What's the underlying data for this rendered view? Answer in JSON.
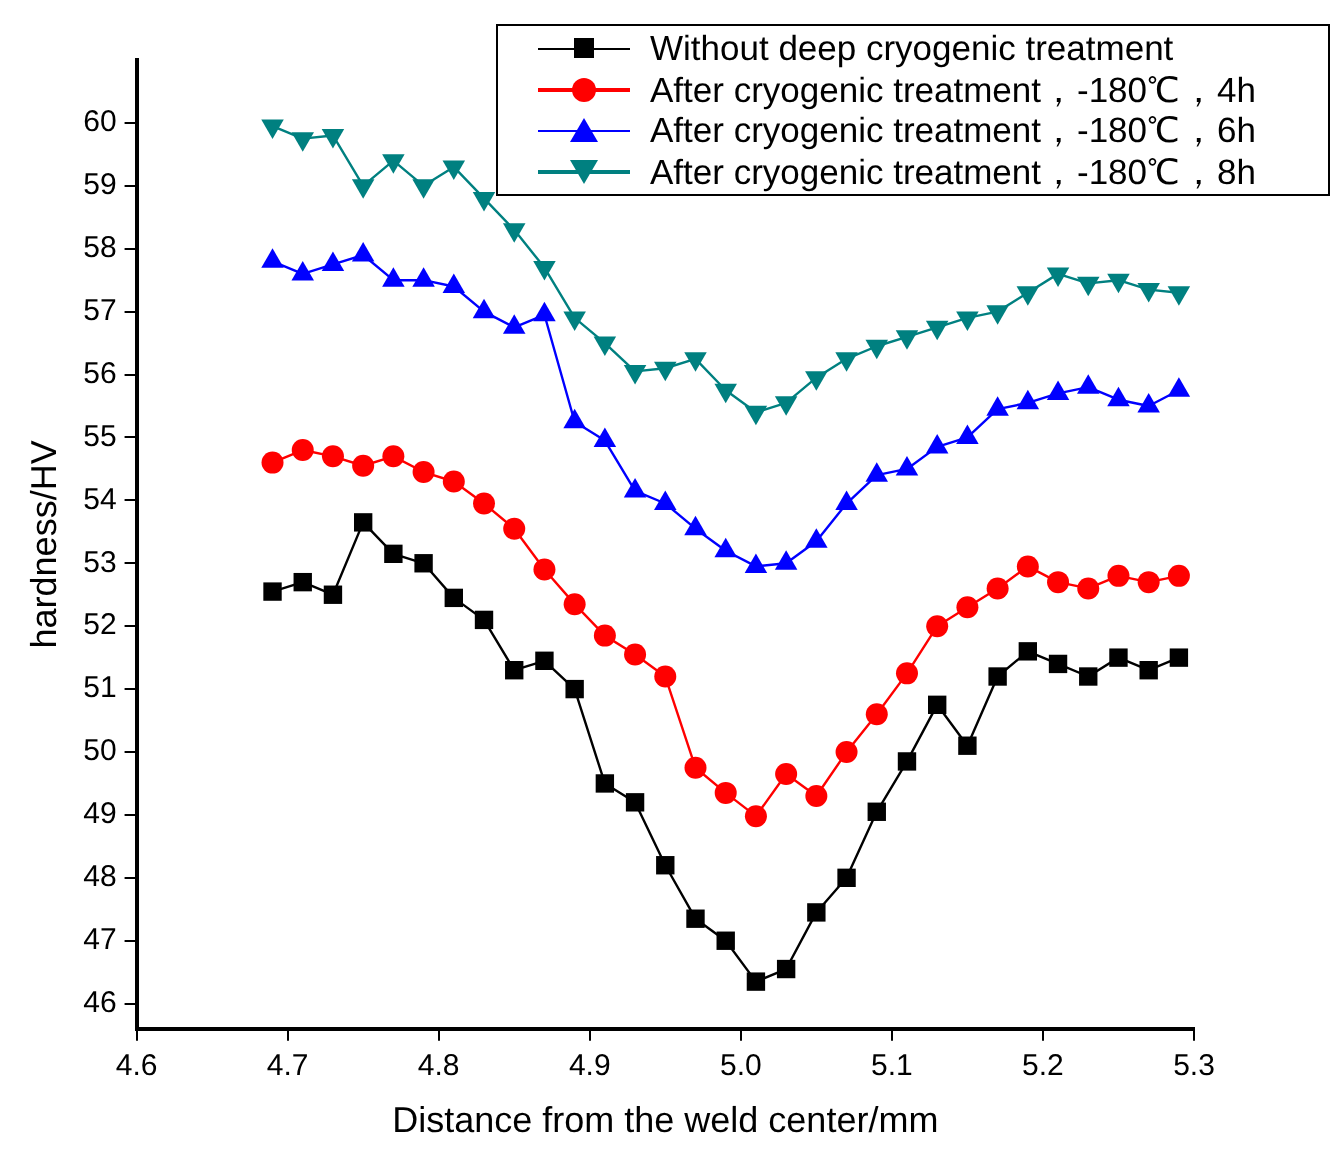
{
  "chart_data": {
    "type": "line",
    "xlabel": "Distance from the weld center/mm",
    "ylabel": "hardness/HV",
    "x": [
      4.69,
      4.71,
      4.73,
      4.75,
      4.77,
      4.79,
      4.81,
      4.83,
      4.85,
      4.87,
      4.89,
      4.91,
      4.93,
      4.95,
      4.97,
      4.99,
      5.01,
      5.03,
      5.05,
      5.07,
      5.09,
      5.11,
      5.13,
      5.15,
      5.17,
      5.19,
      5.21,
      5.23,
      5.25,
      5.27,
      5.29
    ],
    "series": [
      {
        "name": "Without deep cryogenic treatment",
        "color": "#000000",
        "marker": "square",
        "values": [
          52.55,
          52.7,
          52.5,
          53.65,
          53.15,
          53.0,
          52.45,
          52.1,
          51.3,
          51.45,
          51.0,
          49.5,
          49.2,
          48.2,
          47.35,
          47.0,
          46.35,
          46.55,
          47.45,
          48.0,
          49.05,
          49.85,
          50.75,
          50.1,
          51.2,
          51.6,
          51.4,
          51.2,
          51.5,
          51.3,
          51.5
        ]
      },
      {
        "name": "After cryogenic treatment，-180℃，4h",
        "color": "#ff0000",
        "marker": "circle",
        "values": [
          54.6,
          54.8,
          54.7,
          54.55,
          54.7,
          54.45,
          54.3,
          53.95,
          53.55,
          52.9,
          52.35,
          51.85,
          51.55,
          51.2,
          49.75,
          49.35,
          48.98,
          49.65,
          49.3,
          50.0,
          50.6,
          51.25,
          52.0,
          52.3,
          52.6,
          52.95,
          52.7,
          52.6,
          52.8,
          52.7,
          52.8
        ]
      },
      {
        "name": "After cryogenic treatment，-180℃，6h",
        "color": "#0000ff",
        "marker": "triangle",
        "values": [
          57.8,
          57.6,
          57.75,
          57.9,
          57.5,
          57.5,
          57.4,
          57.0,
          56.75,
          56.95,
          55.25,
          54.95,
          54.15,
          53.95,
          53.55,
          53.2,
          52.95,
          53.0,
          53.35,
          53.95,
          54.4,
          54.5,
          54.85,
          55.0,
          55.45,
          55.55,
          55.7,
          55.8,
          55.6,
          55.5,
          55.75
        ]
      },
      {
        "name": "After cryogenic treatment，-180℃，8h",
        "color": "#008080",
        "marker": "triangle-down",
        "values": [
          59.95,
          59.75,
          59.8,
          59.0,
          59.4,
          59.0,
          59.3,
          58.8,
          58.3,
          57.7,
          56.9,
          56.5,
          56.05,
          56.1,
          56.25,
          55.75,
          55.4,
          55.55,
          55.95,
          56.25,
          56.45,
          56.6,
          56.75,
          56.9,
          57.0,
          57.3,
          57.6,
          57.45,
          57.5,
          57.35,
          57.3
        ]
      }
    ],
    "xlim": [
      4.6,
      5.3
    ],
    "xticks": [
      4.6,
      4.7,
      4.8,
      4.9,
      {
        "value": 5,
        "label": "5.0"
      },
      5.1,
      5.2,
      5.3
    ],
    "ylim": [
      45.6,
      61
    ],
    "yticks": [
      46,
      47,
      48,
      49,
      50,
      51,
      52,
      53,
      54,
      55,
      56,
      57,
      58,
      59,
      60
    ],
    "grid": false,
    "legend": "top right",
    "line_style": "solid"
  }
}
